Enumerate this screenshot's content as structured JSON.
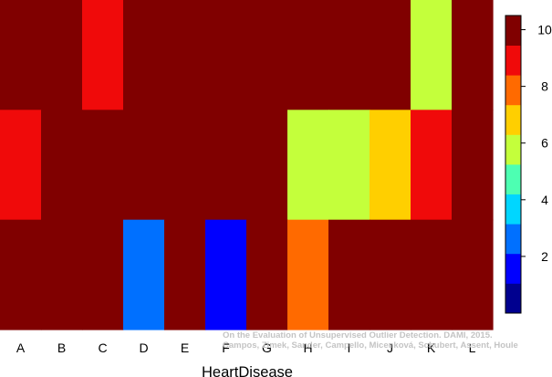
{
  "chart_data": {
    "type": "heatmap",
    "xlabel": "HeartDisease",
    "columns": [
      "A",
      "B",
      "C",
      "D",
      "E",
      "F",
      "G",
      "H",
      "I",
      "J",
      "K",
      "L"
    ],
    "rows": 3,
    "values": [
      [
        10,
        10,
        9,
        10,
        10,
        10,
        10,
        10,
        10,
        10,
        6,
        10
      ],
      [
        9,
        10,
        10,
        10,
        10,
        10,
        10,
        6,
        6,
        7,
        9,
        10
      ],
      [
        10,
        10,
        10,
        3,
        10,
        2,
        10,
        8,
        10,
        10,
        10,
        10
      ]
    ],
    "colorbar": {
      "range": [
        0,
        10.5
      ],
      "ticks": [
        "2",
        "4",
        "6",
        "8",
        "10"
      ],
      "colors": [
        "#00008f",
        "#0000ff",
        "#0070ff",
        "#00d6ff",
        "#4dffb2",
        "#c4ff3b",
        "#ffcf00",
        "#ff6a00",
        "#f00a0a",
        "#800000"
      ]
    },
    "legend": "right",
    "grid": false
  },
  "credit": {
    "line1": "On the Evaluation of Unsupervised Outlier Detection. DAMI, 2015.",
    "line2": "Campos, Zimek, Sander, Campello, Micenková, Schubert, Assent, Houle"
  }
}
